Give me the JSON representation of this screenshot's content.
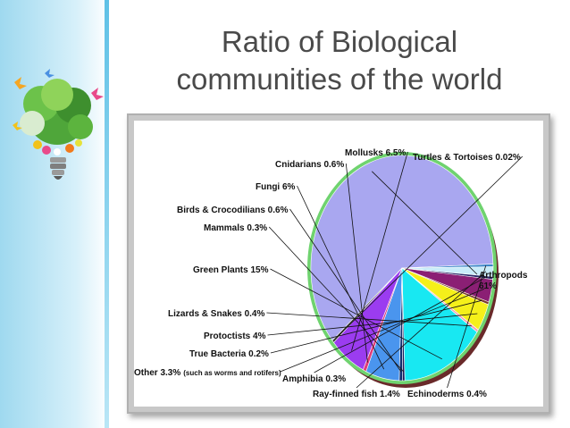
{
  "slide": {
    "title_line1": "Ratio of Biological",
    "title_line2": "communities of the world"
  },
  "colors": {
    "accent_bar": "#9fd9ef",
    "chart_frame": "#c8c8c8",
    "pie_outline": "#6fd36f"
  },
  "logo": {
    "icon": "tree-lightbulb-icon"
  },
  "chart_data": {
    "type": "pie",
    "title": "",
    "slices": [
      {
        "label": "Arthropods",
        "value": 61,
        "text": "Arthropods 61%",
        "color": "#a9a7f0"
      },
      {
        "label": "Echinoderms",
        "value": 0.4,
        "text": "Echinoderms 0.4%",
        "color": "#3a86c8"
      },
      {
        "label": "Ray-finned fish",
        "value": 1.4,
        "text": "Ray-finned fish 1.4%",
        "color": "#c9ecf9"
      },
      {
        "label": "Amphibia",
        "value": 0.3,
        "text": "Amphibia 0.3%",
        "color": "#2b2b6b"
      },
      {
        "label": "Other",
        "value": 3.3,
        "text": "Other 3.3%",
        "note": "(such as worms and rotifers)",
        "color": "#8b1f74"
      },
      {
        "label": "True Bacteria",
        "value": 0.2,
        "text": "True Bacteria 0.2%",
        "color": "#7a3b2a"
      },
      {
        "label": "Protoctists",
        "value": 4,
        "text": "Protoctists 4%",
        "color": "#f5f01a"
      },
      {
        "label": "Lizards & Snakes",
        "value": 0.4,
        "text": "Lizards & Snakes 0.4%",
        "color": "#f3a0b4"
      },
      {
        "label": "Green Plants",
        "value": 15,
        "text": "Green Plants 15%",
        "color": "#18e8f2"
      },
      {
        "label": "Mammals",
        "value": 0.3,
        "text": "Mammals 0.3%",
        "color": "#1b1b5a"
      },
      {
        "label": "Birds & Crocodilians",
        "value": 0.6,
        "text": "Birds & Crocodilians 0.6%",
        "color": "#0f2f70"
      },
      {
        "label": "Fungi",
        "value": 6,
        "text": "Fungi 6%",
        "color": "#4a95ee"
      },
      {
        "label": "Cnidarians",
        "value": 0.6,
        "text": "Cnidarians 0.6%",
        "color": "#e03a7a"
      },
      {
        "label": "Mollusks",
        "value": 6.5,
        "text": "Mollusks 6.5%",
        "color": "#9b3cf0"
      },
      {
        "label": "Turtles & Tortoises",
        "value": 0.02,
        "text": "Turtles & Tortoises 0.02%",
        "color": "#333333"
      }
    ]
  }
}
